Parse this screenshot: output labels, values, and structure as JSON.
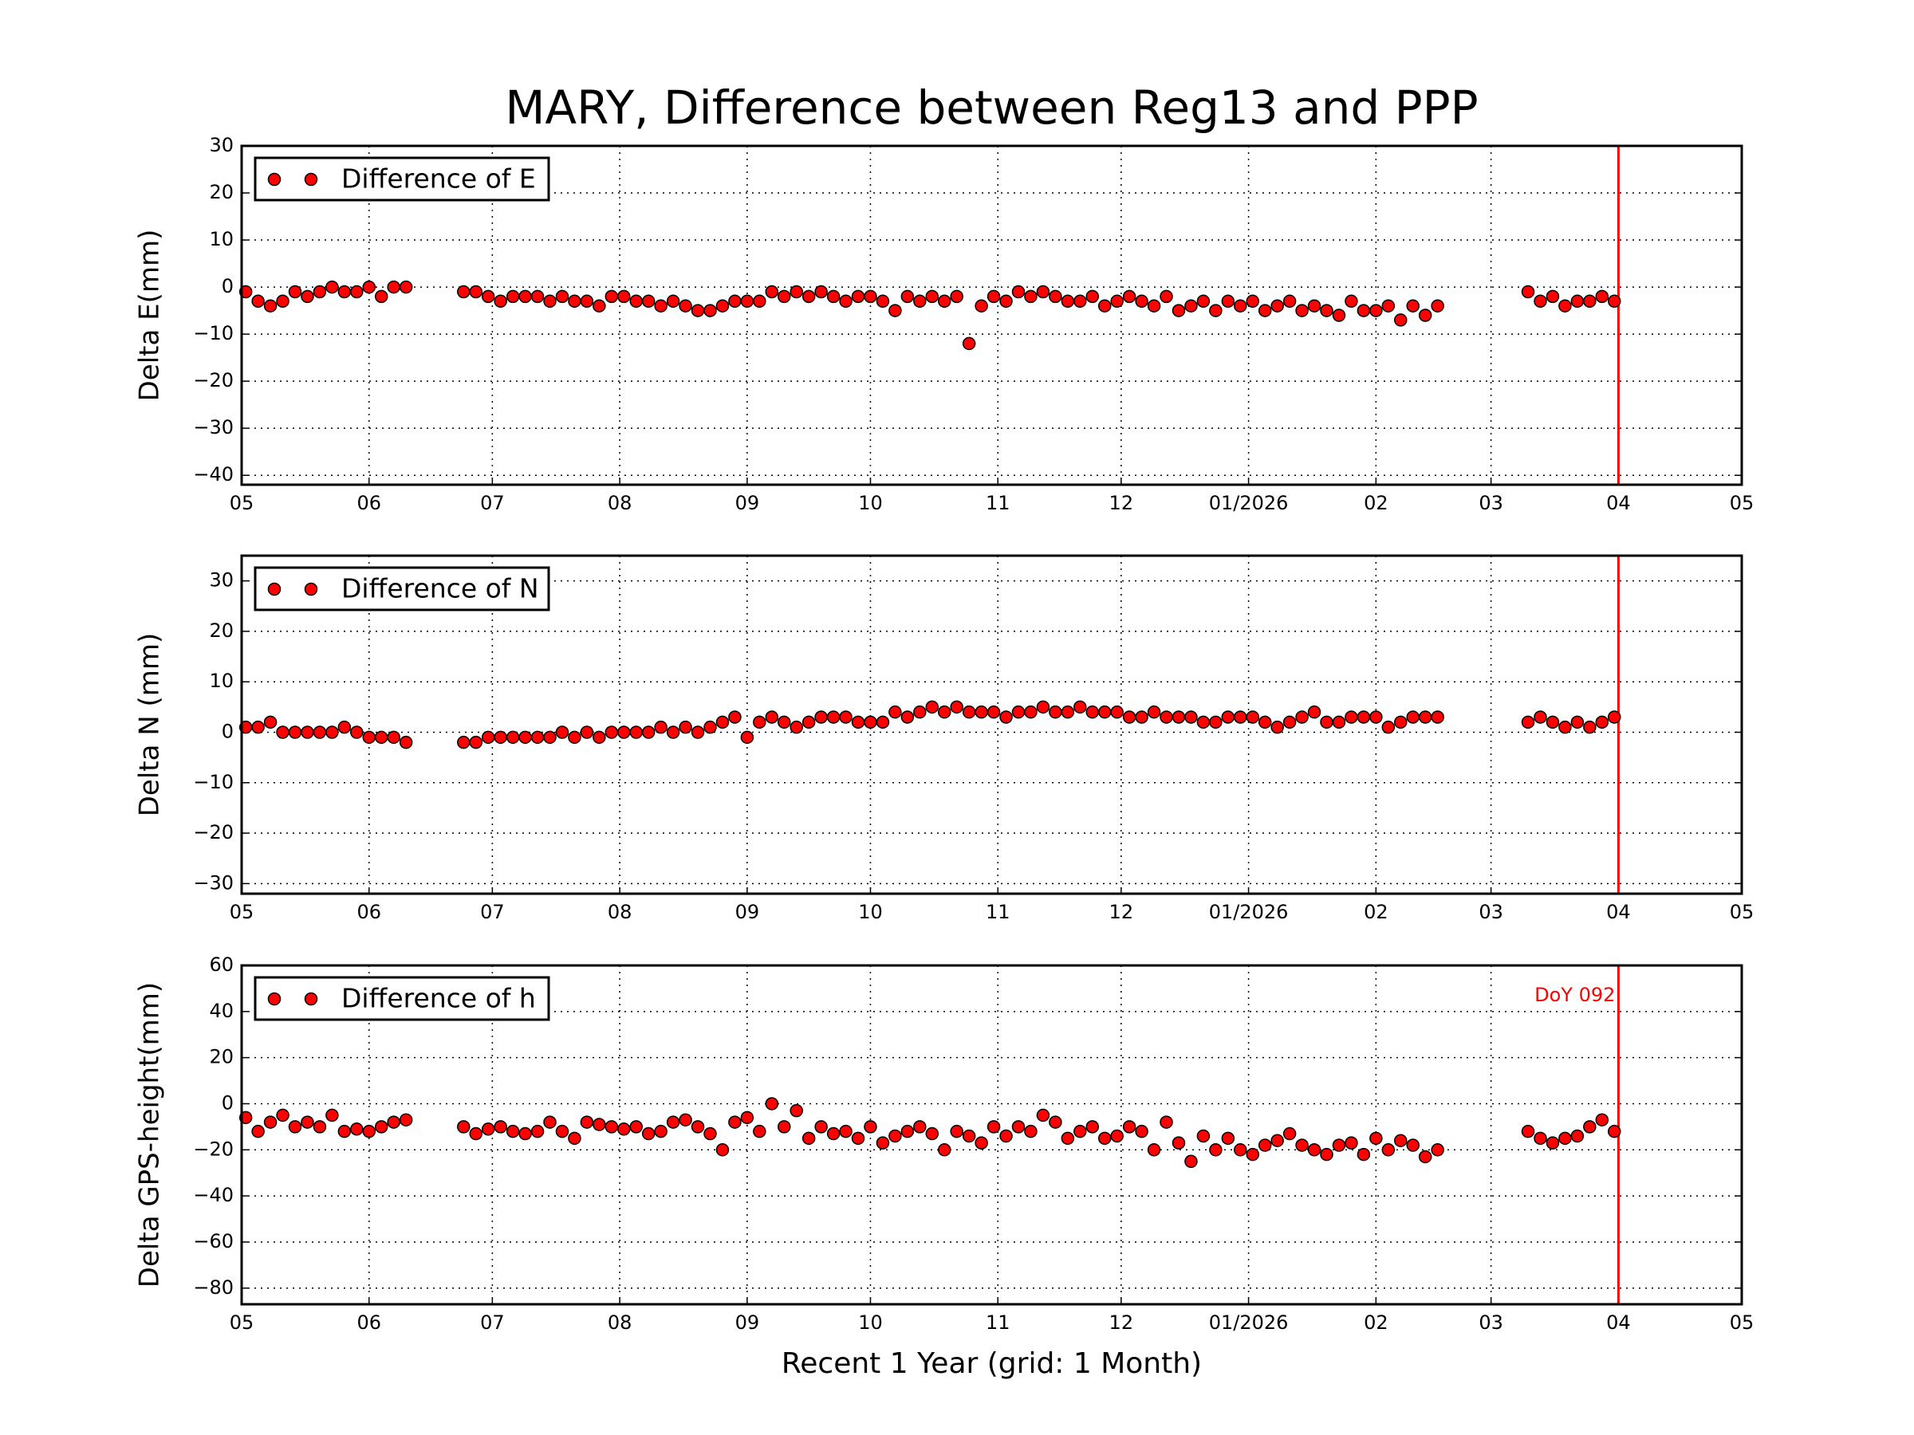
{
  "chart_data": [
    {
      "type": "scatter",
      "title": "MARY, Difference between Reg13 and PPP",
      "ylabel": "Delta E(mm)",
      "legend": "upper left",
      "grid": true,
      "x": [
        1,
        4,
        7,
        10,
        13,
        16,
        19,
        22,
        25,
        28,
        31,
        34,
        37,
        40,
        54,
        57,
        60,
        63,
        66,
        69,
        72,
        75,
        78,
        81,
        84,
        87,
        90,
        93,
        96,
        99,
        102,
        105,
        108,
        111,
        114,
        117,
        120,
        123,
        126,
        129,
        132,
        135,
        138,
        141,
        144,
        147,
        150,
        153,
        156,
        159,
        162,
        165,
        168,
        171,
        174,
        177,
        180,
        183,
        186,
        189,
        192,
        195,
        198,
        201,
        204,
        207,
        210,
        213,
        216,
        219,
        222,
        225,
        228,
        231,
        234,
        237,
        240,
        243,
        246,
        249,
        252,
        255,
        258,
        261,
        264,
        267,
        270,
        273,
        276,
        279,
        282,
        285,
        288,
        291,
        313,
        316,
        319,
        322,
        325,
        328,
        331,
        334
      ],
      "series": [
        {
          "name": "Difference of E",
          "color": "#ff0000",
          "values": [
            -1,
            -3,
            -4,
            -3,
            -1,
            -2,
            -1,
            0,
            -1,
            -1,
            0,
            -2,
            0,
            0,
            -1,
            -1,
            -2,
            -3,
            -2,
            -2,
            -2,
            -3,
            -2,
            -3,
            -3,
            -4,
            -2,
            -2,
            -3,
            -3,
            -4,
            -3,
            -4,
            -5,
            -5,
            -4,
            -3,
            -3,
            -3,
            -1,
            -2,
            -1,
            -2,
            -1,
            -2,
            -3,
            -2,
            -2,
            -3,
            -5,
            -2,
            -3,
            -2,
            -3,
            -2,
            -12,
            -4,
            -2,
            -3,
            -1,
            -2,
            -1,
            -2,
            -3,
            -3,
            -2,
            -4,
            -3,
            -2,
            -3,
            -4,
            -2,
            -5,
            -4,
            -3,
            -5,
            -3,
            -4,
            -3,
            -5,
            -4,
            -3,
            -5,
            -4,
            -5,
            -6,
            -3,
            -5,
            -5,
            -4,
            -7,
            -4,
            -6,
            -4,
            -1,
            -3,
            -2,
            -4,
            -3,
            -3,
            -2,
            -3
          ]
        }
      ],
      "xlim": [
        0,
        365
      ],
      "xticks": [
        {
          "value": 0,
          "label": "05"
        },
        {
          "value": 31,
          "label": "06"
        },
        {
          "value": 61,
          "label": "07"
        },
        {
          "value": 92,
          "label": "08"
        },
        {
          "value": 123,
          "label": "09"
        },
        {
          "value": 153,
          "label": "10"
        },
        {
          "value": 184,
          "label": "11"
        },
        {
          "value": 214,
          "label": "12"
        },
        {
          "value": 245,
          "label": "01/2026"
        },
        {
          "value": 276,
          "label": "02"
        },
        {
          "value": 304,
          "label": "03"
        },
        {
          "value": 335,
          "label": "04"
        },
        {
          "value": 365,
          "label": "05"
        }
      ],
      "ylim": [
        -42,
        30
      ],
      "yticks": [
        -40,
        -30,
        -20,
        -10,
        0,
        10,
        20,
        30
      ],
      "vline": {
        "x": 335,
        "color": "#ff0000"
      }
    },
    {
      "type": "scatter",
      "ylabel": "Delta N (mm)",
      "legend": "upper left",
      "grid": true,
      "x": [
        1,
        4,
        7,
        10,
        13,
        16,
        19,
        22,
        25,
        28,
        31,
        34,
        37,
        40,
        54,
        57,
        60,
        63,
        66,
        69,
        72,
        75,
        78,
        81,
        84,
        87,
        90,
        93,
        96,
        99,
        102,
        105,
        108,
        111,
        114,
        117,
        120,
        123,
        126,
        129,
        132,
        135,
        138,
        141,
        144,
        147,
        150,
        153,
        156,
        159,
        162,
        165,
        168,
        171,
        174,
        177,
        180,
        183,
        186,
        189,
        192,
        195,
        198,
        201,
        204,
        207,
        210,
        213,
        216,
        219,
        222,
        225,
        228,
        231,
        234,
        237,
        240,
        243,
        246,
        249,
        252,
        255,
        258,
        261,
        264,
        267,
        270,
        273,
        276,
        279,
        282,
        285,
        288,
        291,
        313,
        316,
        319,
        322,
        325,
        328,
        331,
        334
      ],
      "series": [
        {
          "name": "Difference of N",
          "color": "#ff0000",
          "values": [
            1,
            1,
            2,
            0,
            0,
            0,
            0,
            0,
            1,
            0,
            -1,
            -1,
            -1,
            -2,
            -2,
            -2,
            -1,
            -1,
            -1,
            -1,
            -1,
            -1,
            0,
            -1,
            0,
            -1,
            0,
            0,
            0,
            0,
            1,
            0,
            1,
            0,
            1,
            2,
            3,
            -1,
            2,
            3,
            2,
            1,
            2,
            3,
            3,
            3,
            2,
            2,
            2,
            4,
            3,
            4,
            5,
            4,
            5,
            4,
            4,
            4,
            3,
            4,
            4,
            5,
            4,
            4,
            5,
            4,
            4,
            4,
            3,
            3,
            4,
            3,
            3,
            3,
            2,
            2,
            3,
            3,
            3,
            2,
            1,
            2,
            3,
            4,
            2,
            2,
            3,
            3,
            3,
            1,
            2,
            3,
            3,
            3,
            2,
            3,
            2,
            1,
            2,
            1,
            2,
            3
          ]
        }
      ],
      "xlim": [
        0,
        365
      ],
      "xticks": [
        {
          "value": 0,
          "label": "05"
        },
        {
          "value": 31,
          "label": "06"
        },
        {
          "value": 61,
          "label": "07"
        },
        {
          "value": 92,
          "label": "08"
        },
        {
          "value": 123,
          "label": "09"
        },
        {
          "value": 153,
          "label": "10"
        },
        {
          "value": 184,
          "label": "11"
        },
        {
          "value": 214,
          "label": "12"
        },
        {
          "value": 245,
          "label": "01/2026"
        },
        {
          "value": 276,
          "label": "02"
        },
        {
          "value": 304,
          "label": "03"
        },
        {
          "value": 335,
          "label": "04"
        },
        {
          "value": 365,
          "label": "05"
        }
      ],
      "ylim": [
        -32,
        35
      ],
      "yticks": [
        -30,
        -20,
        -10,
        0,
        10,
        20,
        30
      ],
      "vline": {
        "x": 335,
        "color": "#ff0000"
      }
    },
    {
      "type": "scatter",
      "ylabel": "Delta GPS-height(mm)",
      "xlabel": "Recent 1 Year (grid: 1 Month)",
      "legend": "upper left",
      "grid": true,
      "annotation": "DoY 092",
      "x": [
        1,
        4,
        7,
        10,
        13,
        16,
        19,
        22,
        25,
        28,
        31,
        34,
        37,
        40,
        54,
        57,
        60,
        63,
        66,
        69,
        72,
        75,
        78,
        81,
        84,
        87,
        90,
        93,
        96,
        99,
        102,
        105,
        108,
        111,
        114,
        117,
        120,
        123,
        126,
        129,
        132,
        135,
        138,
        141,
        144,
        147,
        150,
        153,
        156,
        159,
        162,
        165,
        168,
        171,
        174,
        177,
        180,
        183,
        186,
        189,
        192,
        195,
        198,
        201,
        204,
        207,
        210,
        213,
        216,
        219,
        222,
        225,
        228,
        231,
        234,
        237,
        240,
        243,
        246,
        249,
        252,
        255,
        258,
        261,
        264,
        267,
        270,
        273,
        276,
        279,
        282,
        285,
        288,
        291,
        313,
        316,
        319,
        322,
        325,
        328,
        331,
        334
      ],
      "series": [
        {
          "name": "Difference of h",
          "color": "#ff0000",
          "values": [
            -6,
            -12,
            -8,
            -5,
            -10,
            -8,
            -10,
            -5,
            -12,
            -11,
            -12,
            -10,
            -8,
            -7,
            -10,
            -13,
            -11,
            -10,
            -12,
            -13,
            -12,
            -8,
            -12,
            -15,
            -8,
            -9,
            -10,
            -11,
            -10,
            -13,
            -12,
            -8,
            -7,
            -10,
            -13,
            -20,
            -8,
            -6,
            -12,
            0,
            -10,
            -3,
            -15,
            -10,
            -13,
            -12,
            -15,
            -10,
            -17,
            -14,
            -12,
            -10,
            -13,
            -20,
            -12,
            -14,
            -17,
            -10,
            -14,
            -10,
            -12,
            -5,
            -8,
            -15,
            -12,
            -10,
            -15,
            -14,
            -10,
            -12,
            -20,
            -8,
            -17,
            -25,
            -14,
            -20,
            -15,
            -20,
            -22,
            -18,
            -16,
            -13,
            -18,
            -20,
            -22,
            -18,
            -17,
            -22,
            -15,
            -20,
            -16,
            -18,
            -23,
            -20,
            -12,
            -15,
            -17,
            -15,
            -14,
            -10,
            -7,
            -12
          ]
        }
      ],
      "xlim": [
        0,
        365
      ],
      "xticks": [
        {
          "value": 0,
          "label": "05"
        },
        {
          "value": 31,
          "label": "06"
        },
        {
          "value": 61,
          "label": "07"
        },
        {
          "value": 92,
          "label": "08"
        },
        {
          "value": 123,
          "label": "09"
        },
        {
          "value": 153,
          "label": "10"
        },
        {
          "value": 184,
          "label": "11"
        },
        {
          "value": 214,
          "label": "12"
        },
        {
          "value": 245,
          "label": "01/2026"
        },
        {
          "value": 276,
          "label": "02"
        },
        {
          "value": 304,
          "label": "03"
        },
        {
          "value": 335,
          "label": "04"
        },
        {
          "value": 365,
          "label": "05"
        }
      ],
      "ylim": [
        -87,
        60
      ],
      "yticks": [
        -80,
        -60,
        -40,
        -20,
        0,
        20,
        40,
        60
      ],
      "vline": {
        "x": 335,
        "color": "#ff0000"
      }
    }
  ]
}
